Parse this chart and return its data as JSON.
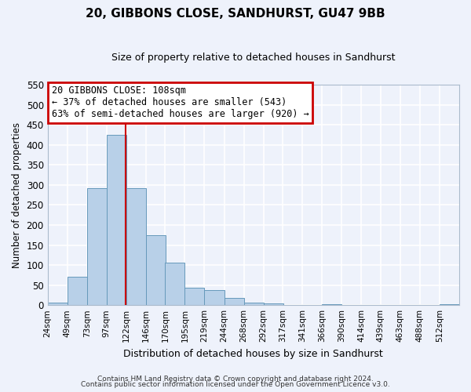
{
  "title": "20, GIBBONS CLOSE, SANDHURST, GU47 9BB",
  "subtitle": "Size of property relative to detached houses in Sandhurst",
  "xlabel": "Distribution of detached houses by size in Sandhurst",
  "ylabel": "Number of detached properties",
  "bar_labels": [
    "24sqm",
    "49sqm",
    "73sqm",
    "97sqm",
    "122sqm",
    "146sqm",
    "170sqm",
    "195sqm",
    "219sqm",
    "244sqm",
    "268sqm",
    "292sqm",
    "317sqm",
    "341sqm",
    "366sqm",
    "390sqm",
    "414sqm",
    "439sqm",
    "463sqm",
    "488sqm",
    "512sqm"
  ],
  "bar_values": [
    7,
    70,
    291,
    425,
    291,
    175,
    106,
    43,
    38,
    17,
    7,
    4,
    0,
    0,
    2,
    0,
    0,
    0,
    0,
    0,
    3
  ],
  "bar_color": "#b8d0e8",
  "bar_edgecolor": "#6699bb",
  "bin_width": 24.5,
  "bin_starts": [
    12,
    36.5,
    61,
    85.5,
    110,
    134.5,
    158.5,
    183,
    207.5,
    232,
    256.5,
    281,
    305,
    329.5,
    354,
    378.5,
    403,
    427,
    451.5,
    476,
    500.5
  ],
  "xlim_left": 12,
  "xlim_right": 525,
  "vline_x": 109.5,
  "ylim": [
    0,
    550
  ],
  "yticks": [
    0,
    50,
    100,
    150,
    200,
    250,
    300,
    350,
    400,
    450,
    500,
    550
  ],
  "annotation_title": "20 GIBBONS CLOSE: 108sqm",
  "annotation_line1": "← 37% of detached houses are smaller (543)",
  "annotation_line2": "63% of semi-detached houses are larger (920) →",
  "annotation_box_facecolor": "#ffffff",
  "annotation_box_edgecolor": "#cc0000",
  "vline_color": "#cc0000",
  "footer1": "Contains HM Land Registry data © Crown copyright and database right 2024.",
  "footer2": "Contains public sector information licensed under the Open Government Licence v3.0.",
  "bg_color": "#eef2fb",
  "grid_color": "#ffffff",
  "title_fontsize": 11,
  "subtitle_fontsize": 9
}
